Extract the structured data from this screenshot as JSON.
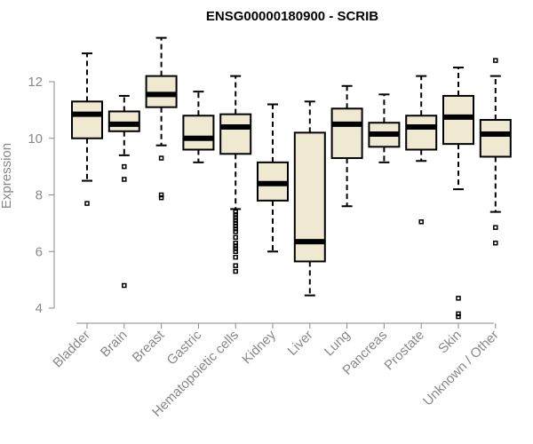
{
  "chart_data": {
    "type": "boxplot",
    "title": "ENSG00000180900 - SCRIB",
    "xlabel": "",
    "ylabel": "Expression",
    "ylim": [
      3.6,
      13.9
    ],
    "yticks": [
      4,
      6,
      8,
      10,
      12
    ],
    "grid": false,
    "categories": [
      "Bladder",
      "Brain",
      "Breast",
      "Gastric",
      "Hematopoietic cells",
      "Kidney",
      "Liver",
      "Lung",
      "Pancreas",
      "Prostate",
      "Skin",
      "Unknown / Other"
    ],
    "boxes": [
      {
        "name": "Bladder",
        "min": 8.5,
        "q1": 10.0,
        "median": 10.85,
        "q3": 11.3,
        "max": 13.0,
        "outliers": [
          7.7
        ]
      },
      {
        "name": "Brain",
        "min": 9.4,
        "q1": 10.25,
        "median": 10.5,
        "q3": 10.95,
        "max": 11.5,
        "outliers": [
          9.0,
          8.55,
          4.8
        ]
      },
      {
        "name": "Breast",
        "min": 9.75,
        "q1": 11.1,
        "median": 11.55,
        "q3": 12.2,
        "max": 13.55,
        "outliers": [
          9.3,
          8.0,
          7.9
        ]
      },
      {
        "name": "Gastric",
        "min": 9.15,
        "q1": 9.6,
        "median": 10.0,
        "q3": 10.8,
        "max": 11.65,
        "outliers": []
      },
      {
        "name": "Hematopoietic cells",
        "min": 7.5,
        "q1": 9.45,
        "median": 10.4,
        "q3": 10.85,
        "max": 12.2,
        "outliers": [
          7.4,
          7.3,
          7.2,
          7.1,
          7.0,
          6.9,
          6.8,
          6.7,
          6.5,
          6.3,
          6.2,
          6.1,
          6.0,
          5.8,
          5.5,
          5.3
        ]
      },
      {
        "name": "Kidney",
        "min": 6.0,
        "q1": 7.8,
        "median": 8.4,
        "q3": 9.15,
        "max": 11.2,
        "outliers": []
      },
      {
        "name": "Liver",
        "min": 4.45,
        "q1": 5.65,
        "median": 6.35,
        "q3": 10.2,
        "max": 11.3,
        "outliers": []
      },
      {
        "name": "Lung",
        "min": 7.6,
        "q1": 9.3,
        "median": 10.5,
        "q3": 11.05,
        "max": 11.85,
        "outliers": []
      },
      {
        "name": "Pancreas",
        "min": 9.15,
        "q1": 9.7,
        "median": 10.15,
        "q3": 10.55,
        "max": 11.55,
        "outliers": []
      },
      {
        "name": "Prostate",
        "min": 9.2,
        "q1": 9.6,
        "median": 10.4,
        "q3": 10.8,
        "max": 12.2,
        "outliers": [
          7.05
        ]
      },
      {
        "name": "Skin",
        "min": 8.2,
        "q1": 9.8,
        "median": 10.75,
        "q3": 11.5,
        "max": 12.5,
        "outliers": [
          4.35,
          3.8,
          3.7
        ]
      },
      {
        "name": "Unknown / Other",
        "min": 7.4,
        "q1": 9.35,
        "median": 10.15,
        "q3": 10.65,
        "max": 12.2,
        "outliers": [
          12.75,
          6.85,
          6.3
        ]
      }
    ]
  }
}
